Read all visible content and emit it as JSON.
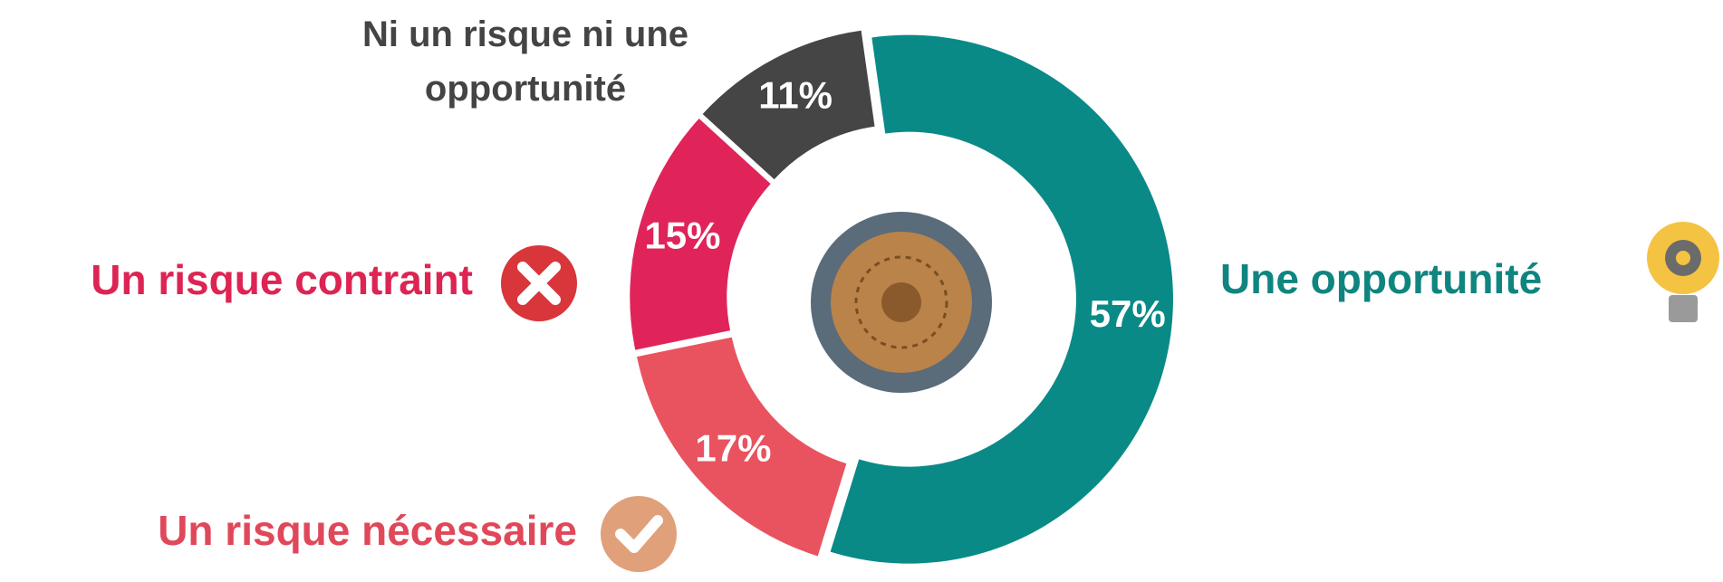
{
  "chart_data": {
    "type": "donut",
    "categories": [
      "Une opportunité",
      "Un risque nécessaire",
      "Un risque contraint",
      "Ni un risque ni une opportunité"
    ],
    "values": [
      57,
      17,
      15,
      11
    ],
    "value_labels": [
      "57%",
      "17%",
      "15%",
      "11%"
    ],
    "colors": [
      "#0a8a87",
      "#e8535f",
      "#e0245a",
      "#454545"
    ],
    "label_colors": [
      "#0f8580",
      "#e0485a",
      "#dd2453",
      "#444444"
    ]
  }
}
